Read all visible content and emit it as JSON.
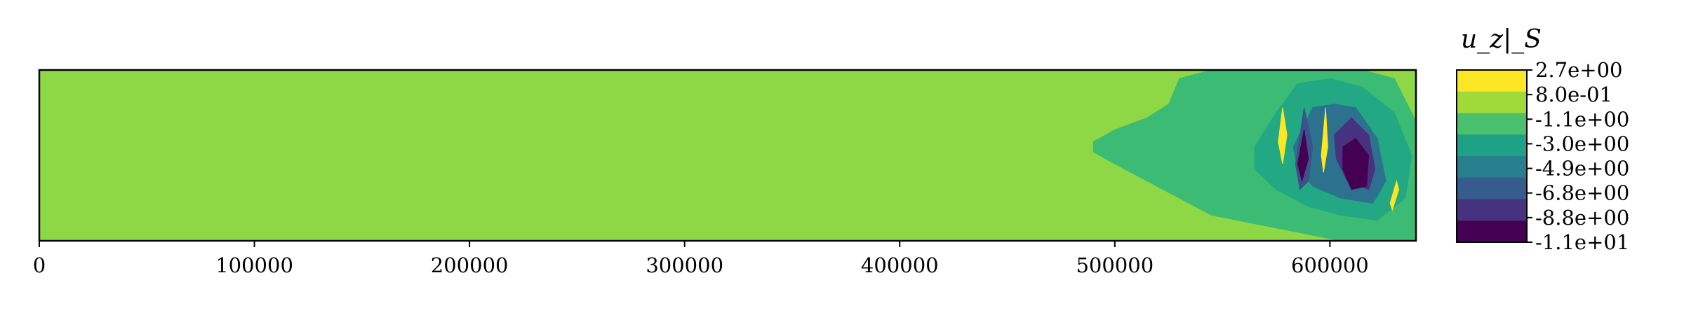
{
  "chart_data": {
    "type": "heatmap",
    "title": "",
    "xlabel": "",
    "ylabel": "",
    "xlim": [
      0,
      640000
    ],
    "x_ticks": [
      0,
      100000,
      200000,
      300000,
      400000,
      500000,
      600000
    ],
    "x_tick_labels": [
      "0",
      "100000",
      "200000",
      "300000",
      "400000",
      "500000",
      "600000"
    ],
    "y_ticks_shown": false,
    "grid": false,
    "colorbar": {
      "title": "u_z|_S",
      "position": "right",
      "levels": [
        "2.7e+00",
        "8.0e-01",
        "-1.1e+00",
        "-3.0e+00",
        "-4.9e+00",
        "-6.8e+00",
        "-8.8e+00",
        "-1.1e+01"
      ],
      "level_values": [
        2.7,
        0.8,
        -1.1,
        -3.0,
        -4.9,
        -6.8,
        -8.8,
        -11.0
      ],
      "band_colors": [
        "#fde725",
        "#a0da39",
        "#4ac16d",
        "#1fa187",
        "#277f8e",
        "#365c8d",
        "#46327e",
        "#440154"
      ]
    },
    "background_level_color": "#8fd845",
    "features": [
      {
        "name": "wake-outer",
        "color": "#3cbb75",
        "x": [
          490000,
          500000,
          515000,
          525000,
          530000,
          545000,
          560000,
          575000,
          595000,
          615000,
          630000,
          640000,
          640000,
          625000,
          605000,
          585000,
          565000,
          545000,
          530000,
          515000,
          500000,
          490000
        ],
        "y": [
          0.58,
          0.65,
          0.72,
          0.8,
          0.95,
          1.0,
          1.0,
          1.0,
          1.0,
          1.0,
          0.95,
          0.7,
          0.0,
          0.0,
          0.0,
          0.05,
          0.1,
          0.15,
          0.25,
          0.35,
          0.45,
          0.52
        ]
      },
      {
        "name": "wake-mid",
        "color": "#23a884",
        "x": [
          565000,
          575000,
          585000,
          600000,
          615000,
          630000,
          638000,
          635000,
          622000,
          605000,
          590000,
          575000,
          565000
        ],
        "y": [
          0.55,
          0.75,
          0.92,
          0.95,
          0.9,
          0.75,
          0.5,
          0.25,
          0.12,
          0.15,
          0.2,
          0.3,
          0.42
        ]
      },
      {
        "name": "wake-inner",
        "color": "#2c728e",
        "x": [
          583000,
          592000,
          602000,
          612000,
          622000,
          626000,
          620000,
          605000,
          592000,
          585000
        ],
        "y": [
          0.55,
          0.78,
          0.8,
          0.78,
          0.6,
          0.35,
          0.22,
          0.25,
          0.32,
          0.42
        ]
      },
      {
        "name": "wake-low",
        "color": "#46327e",
        "x": [
          602000,
          610000,
          618000,
          621000,
          618000,
          608000,
          603000
        ],
        "y": [
          0.62,
          0.72,
          0.62,
          0.42,
          0.3,
          0.35,
          0.48
        ]
      },
      {
        "name": "wake-min",
        "color": "#440154",
        "x": [
          606000,
          612000,
          618000,
          617000,
          610000,
          606000
        ],
        "y": [
          0.55,
          0.6,
          0.5,
          0.32,
          0.3,
          0.42
        ]
      },
      {
        "name": "stripe-low-1",
        "color": "#3b528b",
        "x": [
          584000,
          588000,
          592000,
          590000,
          586000
        ],
        "y": [
          0.45,
          0.78,
          0.55,
          0.35,
          0.3
        ]
      },
      {
        "name": "stripe-low-2",
        "color": "#440154",
        "x": [
          585000,
          588000,
          590000,
          587000
        ],
        "y": [
          0.45,
          0.65,
          0.48,
          0.35
        ]
      },
      {
        "name": "stripe-high-1",
        "color": "#fde725",
        "x": [
          576000,
          578000,
          580000,
          578000
        ],
        "y": [
          0.58,
          0.78,
          0.62,
          0.45
        ]
      },
      {
        "name": "stripe-high-2",
        "color": "#fde725",
        "x": [
          596000,
          598000,
          599000,
          597000
        ],
        "y": [
          0.5,
          0.78,
          0.55,
          0.4
        ]
      },
      {
        "name": "stripe-high-3",
        "color": "#fde725",
        "x": [
          628000,
          631000,
          632000,
          629000
        ],
        "y": [
          0.22,
          0.35,
          0.3,
          0.18
        ]
      }
    ]
  }
}
